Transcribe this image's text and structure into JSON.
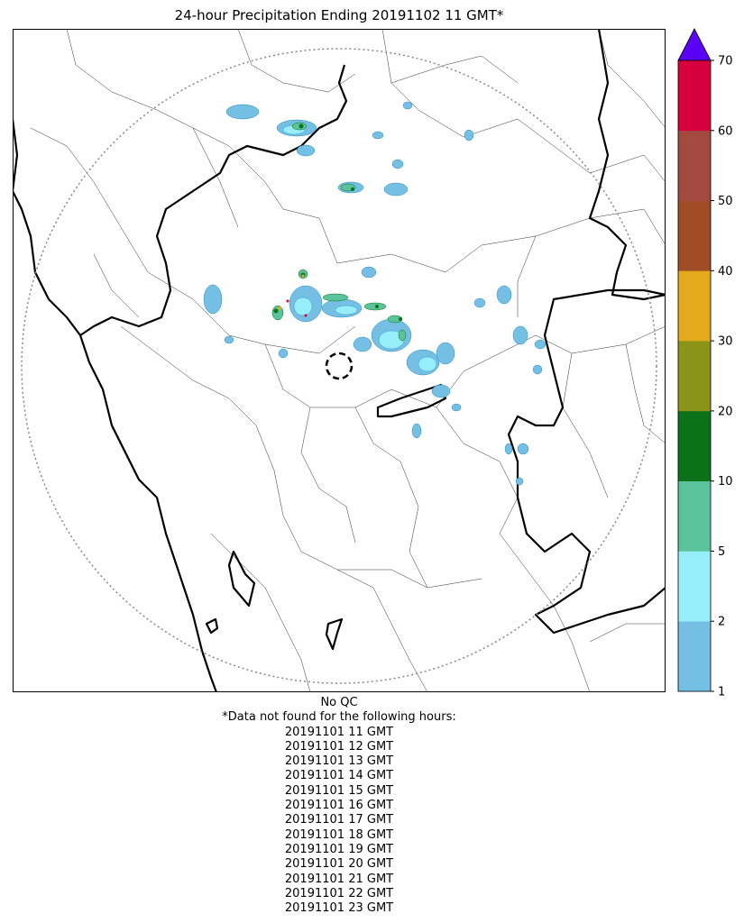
{
  "title": "24-hour Precipitation Ending 20191102 11 GMT*",
  "colorbar": {
    "ticks": [
      "1",
      "2",
      "5",
      "10",
      "20",
      "30",
      "40",
      "50",
      "60",
      "70"
    ],
    "colors": [
      "#74bfe3",
      "#97eefb",
      "#5bc39b",
      "#0b7219",
      "#8a9418",
      "#e5a91c",
      "#a04d26",
      "#a34a40",
      "#d6003f"
    ],
    "extend_color": "#5a00f5"
  },
  "footer": {
    "qc_label": "No QC",
    "missing_header": "*Data not found for the following hours:",
    "missing_hours": [
      "20191101 11 GMT",
      "20191101 12 GMT",
      "20191101 13 GMT",
      "20191101 14 GMT",
      "20191101 15 GMT",
      "20191101 16 GMT",
      "20191101 17 GMT",
      "20191101 18 GMT",
      "20191101 19 GMT",
      "20191101 20 GMT",
      "20191101 21 GMT",
      "20191101 22 GMT",
      "20191101 23 GMT"
    ]
  }
}
